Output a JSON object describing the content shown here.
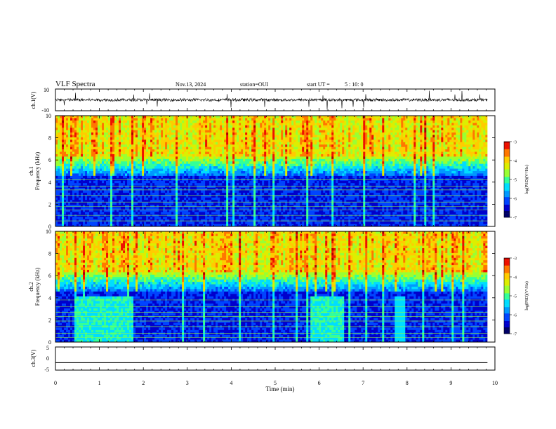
{
  "header": {
    "title": "VLF Spectra",
    "date": "Nov.13, 2024",
    "station": "station=OUI",
    "start_label": "start  UT =",
    "start_time": "5 : 10: 0"
  },
  "colormap": [
    "#000066",
    "#0000cc",
    "#0044ff",
    "#0099ff",
    "#00ddff",
    "#33ff99",
    "#99ff33",
    "#ddee00",
    "#ffcc00",
    "#ff7700",
    "#ee1100",
    "#aa0000",
    "#ffffff"
  ],
  "chart_data": [
    {
      "type": "line",
      "name": "waveform-ch1",
      "ylabel": "ch.1(V)",
      "ylim": [
        -10,
        10
      ],
      "y_ticks": [
        "10",
        "-10"
      ],
      "x_range": [
        0,
        10
      ],
      "baseline": 0,
      "data_extent": 9.83,
      "color": "#000000"
    },
    {
      "type": "heatmap",
      "name": "spectrogram-ch1",
      "ylabel": "ch.1\nFrequency (kHz)",
      "ylim": [
        0,
        10
      ],
      "y_ticks": [
        "0",
        "2",
        "4",
        "6",
        "8",
        "10"
      ],
      "x_range": [
        0,
        10
      ],
      "data_extent": 9.83,
      "colorbar": {
        "label": "log(PSD)(V²/Hz)",
        "range": [
          -7,
          -3
        ],
        "ticks": [
          "-3",
          "-4",
          "-5",
          "-6",
          "-7"
        ]
      }
    },
    {
      "type": "heatmap",
      "name": "spectrogram-ch2",
      "ylabel": "ch.2\nFrequency (kHz)",
      "ylim": [
        0,
        10
      ],
      "y_ticks": [
        "0",
        "2",
        "4",
        "6",
        "8",
        "10"
      ],
      "x_range": [
        0,
        10
      ],
      "data_extent": 9.83,
      "colorbar": {
        "label": "log(PSD)(V²/Hz)",
        "range": [
          -7,
          -3
        ],
        "ticks": [
          "-3",
          "-4",
          "-5",
          "-6",
          "-7"
        ]
      }
    },
    {
      "type": "line",
      "name": "waveform-ch3",
      "ylabel": "ch.3(V)",
      "ylim": [
        -5,
        5
      ],
      "y_ticks": [
        "5",
        "0",
        "-5"
      ],
      "x_range": [
        0,
        10
      ],
      "baseline": -1.8,
      "data_extent": 9.83,
      "color": "#000000"
    }
  ],
  "x_axis": {
    "label": "Time (min)",
    "ticks": [
      "0",
      "1",
      "2",
      "3",
      "4",
      "5",
      "6",
      "7",
      "8",
      "9",
      "10"
    ]
  }
}
